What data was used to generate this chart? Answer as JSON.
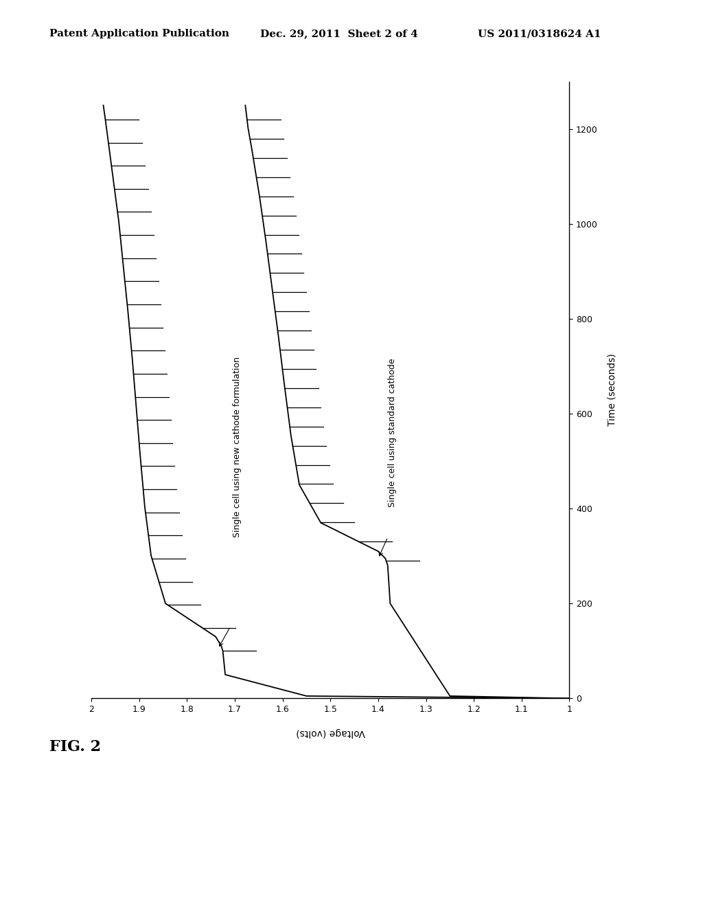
{
  "header_left": "Patent Application Publication",
  "header_middle": "Dec. 29, 2011  Sheet 2 of 4",
  "header_right": "US 2011/0318624 A1",
  "fig_label": "FIG. 2",
  "xlabel": "Voltage (volts)",
  "ylabel": "Time (seconds)",
  "xlim_left": 2.0,
  "xlim_right": 1.0,
  "ylim_bottom": 0,
  "ylim_top": 1300,
  "xticks": [
    2.0,
    1.9,
    1.8,
    1.7,
    1.6,
    1.5,
    1.4,
    1.3,
    1.2,
    1.1,
    1.0
  ],
  "xtick_labels": [
    "2",
    "1.9",
    "1.8",
    "1.7",
    "1.6",
    "1.5",
    "1.4",
    "1.3",
    "1.2",
    "1.1",
    "1"
  ],
  "yticks": [
    0,
    200,
    400,
    600,
    800,
    1000,
    1200
  ],
  "ytick_labels": [
    "0",
    "200",
    "400",
    "600",
    "800",
    "1000",
    "1200"
  ],
  "label1": "Single cell using new cathode formulation",
  "label2": "Single cell using standard cathode",
  "curve_color": "#000000",
  "background_color": "#ffffff",
  "font_size_header": 11,
  "font_size_axis_label": 10,
  "font_size_tick": 9,
  "font_size_fig": 16,
  "font_size_curve_label": 9
}
